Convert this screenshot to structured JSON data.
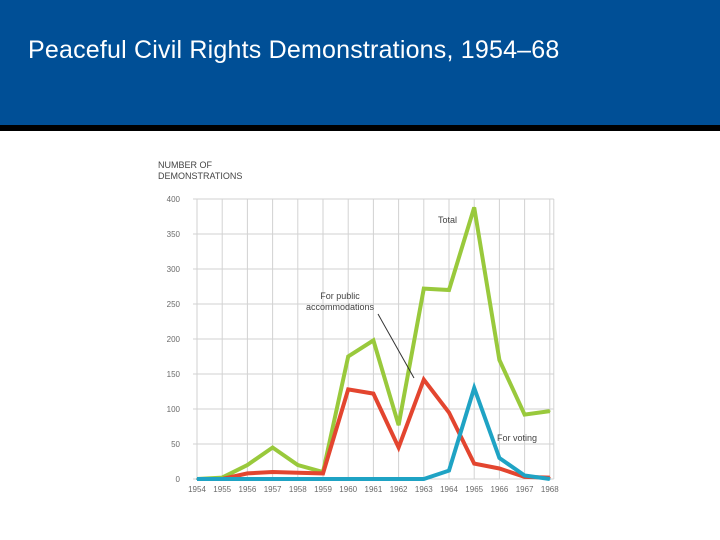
{
  "slide": {
    "title": "Peaceful Civil Rights Demonstrations, 1954–68"
  },
  "colors": {
    "header": "#004f96",
    "total": "#99c93c",
    "public_accommodations": "#e3452f",
    "voting": "#1fa3c4",
    "grid": "#d2d2d2"
  },
  "chart_data": {
    "type": "line",
    "ylabel_lines": [
      "NUMBER OF",
      "DEMONSTRATIONS"
    ],
    "x": [
      "1954",
      "1955",
      "1956",
      "1957",
      "1958",
      "1959",
      "1960",
      "1961",
      "1962",
      "1963",
      "1964",
      "1965",
      "1966",
      "1967",
      "1968"
    ],
    "ylim": [
      0,
      400
    ],
    "yticks": [
      "0",
      "50",
      "100",
      "150",
      "200",
      "250",
      "300",
      "350",
      "400"
    ],
    "grid": true,
    "series": [
      {
        "name": "Total",
        "key": "total",
        "values": [
          0,
          2,
          20,
          45,
          20,
          10,
          175,
          198,
          77,
          272,
          270,
          388,
          170,
          92,
          97
        ]
      },
      {
        "name": "For public accommodations",
        "key": "public_accommodations",
        "values": [
          0,
          0,
          8,
          10,
          9,
          8,
          128,
          122,
          45,
          142,
          95,
          22,
          15,
          3,
          2
        ]
      },
      {
        "name": "For voting",
        "key": "voting",
        "values": [
          0,
          0,
          0,
          0,
          0,
          0,
          0,
          0,
          0,
          0,
          12,
          130,
          30,
          5,
          0
        ]
      }
    ],
    "annotations": {
      "total": "Total",
      "public_accommodations_lines": [
        "For public",
        "accommodations"
      ],
      "voting": "For voting"
    }
  }
}
